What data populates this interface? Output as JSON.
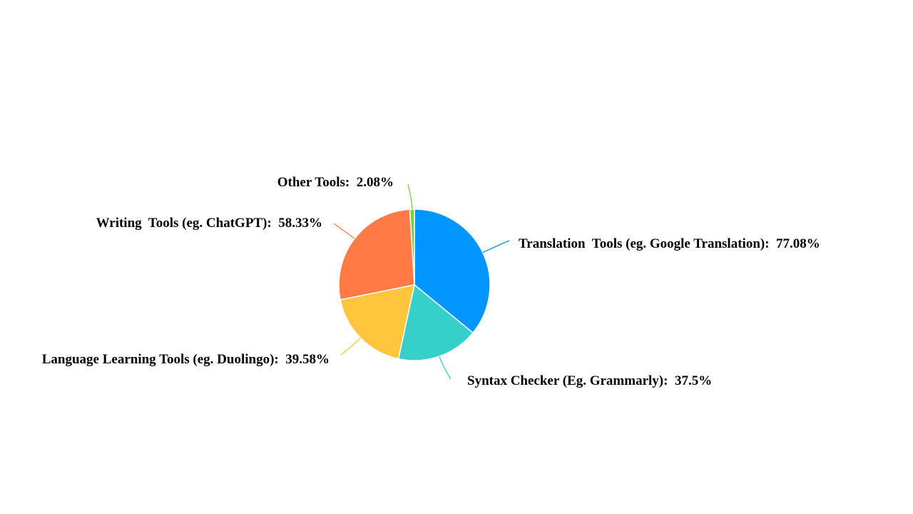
{
  "chart_data": {
    "type": "pie",
    "slices": [
      {
        "name": "Translation  Tools (eg. Google Translation)",
        "value": 77.08,
        "label": "Translation  Tools (eg. Google Translation):  77.08%",
        "color": "#0095ff"
      },
      {
        "name": "Syntax Checker (Eg. Grammarly)",
        "value": 37.5,
        "label": "Syntax Checker (Eg. Grammarly):  37.5%",
        "color": "#36cfc9"
      },
      {
        "name": "Language Learning Tools (eg. Duolingo)",
        "value": 39.58,
        "label": "Language Learning Tools (eg. Duolingo):  39.58%",
        "color": "#ffc53d"
      },
      {
        "name": "Writing  Tools (eg. ChatGPT)",
        "value": 58.33,
        "label": "Writing  Tools (eg. ChatGPT):  58.33%",
        "color": "#ff7a45"
      },
      {
        "name": "Other Tools",
        "value": 2.08,
        "label": "Other Tools:  2.08%",
        "color": "#73d13d"
      }
    ],
    "start_angle": "12 o'clock",
    "direction": "clockwise",
    "legend": "none"
  }
}
